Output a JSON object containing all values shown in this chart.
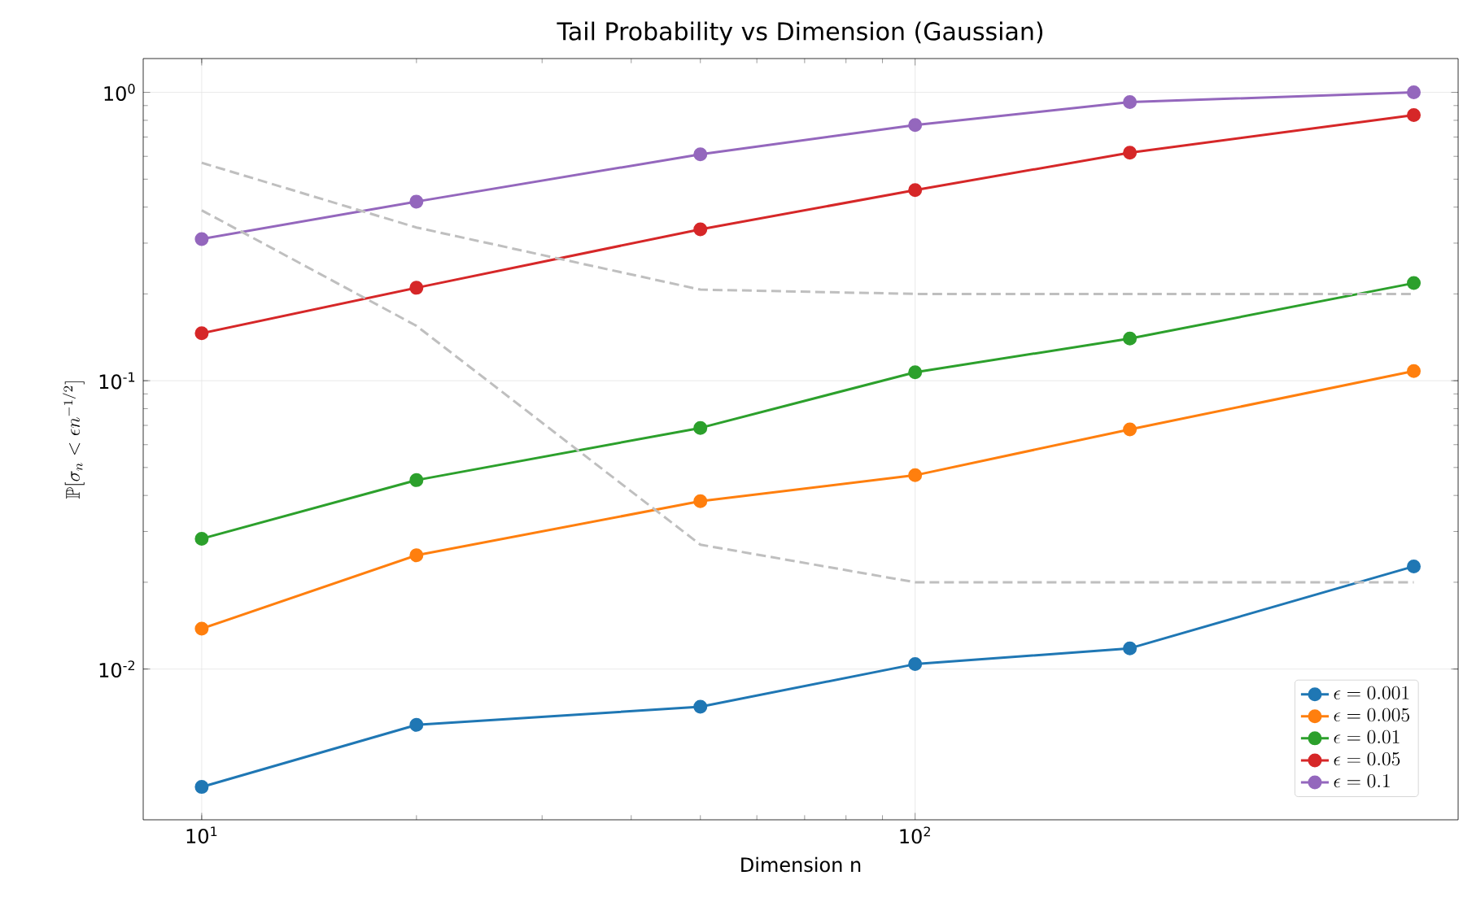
{
  "chart_data": {
    "type": "line",
    "title": "Tail Probability vs Dimension (Gaussian)",
    "xlabel": "Dimension n",
    "ylabel": "\\mathbb{P}[\\sigma_n < \\epsilon n^{-1/2}]",
    "x": [
      10,
      20,
      50,
      100,
      200,
      500
    ],
    "series": [
      {
        "name": "\\epsilon = 0.001",
        "color": "#1f77b4",
        "values": [
          0.0039,
          0.0064,
          0.0074,
          0.0104,
          0.0118,
          0.0227
        ]
      },
      {
        "name": "\\epsilon = 0.005",
        "color": "#ff7f0e",
        "values": [
          0.0138,
          0.0248,
          0.0382,
          0.047,
          0.0678,
          0.108
        ]
      },
      {
        "name": "\\epsilon = 0.01",
        "color": "#2ca02c",
        "values": [
          0.0283,
          0.0452,
          0.0686,
          0.107,
          0.14,
          0.218
        ]
      },
      {
        "name": "\\epsilon = 0.05",
        "color": "#d62728",
        "values": [
          0.146,
          0.21,
          0.335,
          0.458,
          0.618,
          0.834
        ]
      },
      {
        "name": "\\epsilon = 0.1",
        "color": "#9467bd",
        "values": [
          0.31,
          0.418,
          0.61,
          0.771,
          0.925,
          1.0
        ]
      },
      {
        "color": "#bfbfbf",
        "marker": "none",
        "line_style": "dashed",
        "values": [
          0.57,
          0.34,
          0.207,
          0.2,
          0.2,
          0.2
        ]
      },
      {
        "color": "#bfbfbf",
        "marker": "none",
        "line_style": "dashed",
        "values": [
          0.39,
          0.155,
          0.027,
          0.02,
          0.02,
          0.02
        ]
      }
    ],
    "marker": "circle",
    "line_style": "solid",
    "log": "xy",
    "grid": true,
    "legend": "bottom right",
    "xlim": [
      8.28,
      577
    ],
    "ylim": [
      0.003,
      1.31
    ],
    "xticks": [
      {
        "value": 10,
        "label": "10$^{1}$"
      },
      {
        "value": 100,
        "label": "10$^{2}$"
      }
    ],
    "yticks": [
      {
        "value": 0.01,
        "label": "10$^{-2}$"
      },
      {
        "value": 0.1,
        "label": "10$^{-1}$"
      },
      {
        "value": 1,
        "label": "10$^{0}$"
      }
    ]
  }
}
